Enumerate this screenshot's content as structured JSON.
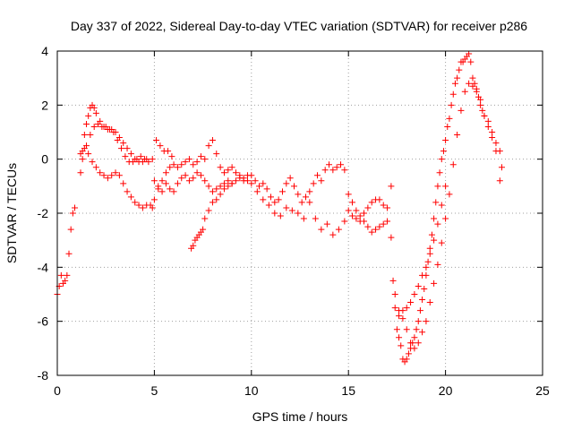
{
  "chart_data": {
    "type": "scatter",
    "title": "Day 337 of 2022, Sidereal Day-to-day VTEC variation (SDTVAR) for receiver p286",
    "xlabel": "GPS time / hours",
    "ylabel": "SDTVAR / TECUs",
    "xlim": [
      0,
      25
    ],
    "ylim": [
      -8,
      4
    ],
    "xticks": [
      0,
      5,
      10,
      15,
      20,
      25
    ],
    "yticks": [
      -8,
      -6,
      -4,
      -2,
      0,
      2,
      4
    ],
    "grid": true,
    "marker": "+",
    "color": "#ff0000",
    "series": [
      {
        "name": "SDTVAR",
        "x": [
          0.0,
          0.1,
          0.2,
          0.3,
          0.4,
          0.5,
          0.6,
          0.7,
          0.8,
          0.9,
          1.2,
          1.3,
          1.4,
          1.5,
          1.6,
          1.7,
          1.8,
          1.9,
          2.0,
          2.2,
          2.4,
          2.6,
          2.8,
          3.0,
          3.2,
          3.4,
          3.6,
          3.8,
          4.0,
          4.2,
          4.4,
          4.6,
          1.3,
          1.5,
          1.7,
          1.9,
          2.1,
          2.3,
          2.5,
          2.7,
          2.9,
          3.1,
          3.3,
          3.5,
          3.7,
          3.9,
          4.1,
          4.3,
          4.5,
          4.7,
          4.9,
          5.1,
          5.3,
          5.5,
          5.7,
          5.9,
          1.2,
          1.4,
          1.6,
          1.8,
          2.0,
          2.2,
          2.4,
          2.6,
          2.8,
          3.0,
          3.2,
          3.4,
          3.6,
          3.8,
          4.0,
          4.2,
          4.4,
          4.6,
          4.8,
          4.9,
          5.0,
          5.2,
          5.4,
          5.6,
          5.8,
          6.0,
          6.2,
          6.4,
          6.6,
          6.8,
          7.0,
          7.2,
          7.4,
          7.6,
          7.8,
          8.0,
          8.2,
          8.4,
          8.6,
          8.8,
          9.0,
          9.2,
          9.4,
          9.6,
          9.8,
          5.0,
          5.2,
          5.4,
          5.6,
          5.8,
          6.0,
          6.2,
          6.4,
          6.6,
          6.8,
          7.0,
          7.2,
          7.4,
          7.6,
          7.8,
          8.0,
          8.2,
          8.4,
          8.6,
          8.8,
          9.0,
          9.2,
          9.4,
          9.6,
          9.8,
          6.9,
          7.0,
          7.1,
          7.2,
          7.3,
          7.4,
          7.5,
          7.6,
          7.8,
          8.0,
          8.2,
          8.4,
          8.6,
          8.8,
          9.0,
          10.0,
          10.2,
          10.4,
          10.6,
          10.8,
          11.0,
          11.2,
          11.4,
          11.6,
          11.8,
          12.0,
          12.2,
          12.4,
          12.6,
          12.8,
          13.0,
          13.2,
          13.4,
          13.6,
          13.8,
          14.0,
          14.2,
          14.4,
          14.6,
          14.8,
          10.0,
          10.3,
          10.6,
          10.9,
          11.2,
          11.5,
          11.8,
          12.1,
          12.4,
          12.7,
          13.0,
          13.3,
          13.6,
          13.9,
          14.2,
          14.5,
          14.8,
          15.0,
          15.2,
          15.4,
          15.6,
          15.8,
          16.0,
          16.2,
          16.4,
          16.6,
          16.8,
          17.0,
          17.2,
          15.0,
          15.2,
          15.4,
          15.6,
          15.8,
          16.0,
          16.2,
          16.4,
          16.6,
          16.8,
          17.0,
          17.2,
          17.3,
          17.4,
          17.5,
          17.6,
          17.7,
          17.8,
          17.9,
          18.0,
          18.1,
          18.2,
          18.3,
          18.4,
          18.5,
          18.6,
          18.7,
          18.8,
          18.9,
          19.0,
          19.1,
          19.2,
          19.3,
          19.4,
          19.5,
          19.6,
          19.7,
          19.8,
          19.9,
          20.0,
          20.1,
          20.2,
          20.3,
          20.4,
          20.5,
          20.6,
          20.7,
          20.8,
          20.9,
          21.0,
          21.1,
          21.2,
          21.3,
          21.4,
          21.5,
          21.6,
          21.7,
          21.8,
          21.9,
          22.0,
          22.2,
          22.4,
          22.6,
          22.8,
          22.9,
          17.4,
          17.6,
          17.8,
          18.0,
          18.2,
          18.4,
          18.6,
          18.8,
          19.0,
          19.2,
          19.4,
          19.6,
          19.8,
          20.0,
          20.2,
          20.4,
          20.6,
          20.8,
          21.0,
          21.2,
          21.4,
          21.6,
          21.8,
          22.0,
          22.2,
          22.4,
          22.6,
          22.8,
          17.6,
          17.8,
          18.0,
          18.2,
          18.4,
          18.6,
          18.8,
          19.0,
          19.2,
          19.4,
          19.6,
          19.8,
          20.0
        ],
        "y": [
          -5.0,
          -4.7,
          -4.3,
          -4.6,
          -4.5,
          -4.3,
          -3.5,
          -2.6,
          -2.0,
          -1.8,
          -0.5,
          0.3,
          0.9,
          1.3,
          1.6,
          1.9,
          2.0,
          1.9,
          1.7,
          1.4,
          1.2,
          1.1,
          1.1,
          1.0,
          0.8,
          0.6,
          0.4,
          0.2,
          0.0,
          -0.1,
          -0.1,
          0.0,
          0.0,
          0.5,
          0.9,
          1.2,
          1.3,
          1.2,
          1.2,
          1.1,
          1.0,
          0.7,
          0.4,
          0.1,
          -0.1,
          -0.1,
          0.0,
          0.1,
          0.0,
          -0.1,
          0.0,
          0.7,
          0.5,
          0.3,
          0.3,
          0.1,
          0.2,
          0.4,
          0.2,
          -0.1,
          -0.3,
          -0.5,
          -0.6,
          -0.7,
          -0.6,
          -0.5,
          -0.6,
          -0.9,
          -1.2,
          -1.4,
          -1.6,
          -1.7,
          -1.8,
          -1.7,
          -1.7,
          -1.8,
          -1.5,
          -1.1,
          -0.8,
          -0.5,
          -0.3,
          -0.2,
          -0.3,
          -0.2,
          -0.1,
          0.0,
          -0.2,
          -0.1,
          0.1,
          0.0,
          0.5,
          0.7,
          0.2,
          -0.3,
          -0.5,
          -0.4,
          -0.3,
          -0.5,
          -0.6,
          -0.7,
          -0.8,
          -0.8,
          -1.0,
          -1.2,
          -0.9,
          -1.1,
          -1.2,
          -0.9,
          -0.7,
          -0.6,
          -0.8,
          -0.7,
          -0.5,
          -0.6,
          -0.8,
          -1.0,
          -1.2,
          -1.1,
          -1.0,
          -0.9,
          -0.8,
          -0.9,
          -0.8,
          -0.7,
          -0.8,
          -0.6,
          -3.3,
          -3.2,
          -3.0,
          -2.9,
          -2.8,
          -2.7,
          -2.6,
          -2.2,
          -1.9,
          -1.6,
          -1.5,
          -1.3,
          -1.1,
          -1.0,
          -0.9,
          -0.6,
          -0.8,
          -1.0,
          -0.9,
          -1.1,
          -1.4,
          -1.6,
          -1.5,
          -1.2,
          -0.9,
          -0.7,
          -1.0,
          -1.3,
          -1.6,
          -1.4,
          -1.2,
          -0.9,
          -0.6,
          -0.8,
          -0.4,
          -0.2,
          -0.4,
          -0.3,
          -0.2,
          -0.4,
          -0.9,
          -1.2,
          -1.5,
          -1.7,
          -2.0,
          -2.1,
          -1.8,
          -1.9,
          -2.0,
          -2.2,
          -1.6,
          -2.2,
          -2.6,
          -2.4,
          -2.8,
          -2.6,
          -2.3,
          -1.3,
          -1.6,
          -1.9,
          -2.1,
          -2.3,
          -2.5,
          -2.7,
          -2.6,
          -2.5,
          -2.4,
          -1.8,
          -1.0,
          -1.9,
          -2.1,
          -2.2,
          -2.3,
          -2.0,
          -1.8,
          -1.6,
          -1.5,
          -1.5,
          -1.7,
          -2.3,
          -2.9,
          -4.5,
          -5.5,
          -6.3,
          -6.6,
          -6.9,
          -7.4,
          -7.5,
          -7.4,
          -7.2,
          -7.0,
          -6.8,
          -6.6,
          -6.3,
          -6.0,
          -5.6,
          -5.2,
          -4.8,
          -4.3,
          -3.8,
          -3.3,
          -2.8,
          -2.2,
          -1.6,
          -1.0,
          -0.5,
          0.0,
          0.3,
          0.7,
          1.2,
          1.5,
          2.0,
          2.4,
          2.8,
          3.0,
          3.3,
          3.6,
          3.6,
          3.7,
          3.8,
          3.9,
          3.6,
          3.0,
          2.8,
          2.6,
          2.3,
          2.0,
          1.8,
          1.6,
          1.4,
          1.0,
          0.6,
          0.3,
          -0.3,
          -5.0,
          -5.6,
          -5.9,
          -6.3,
          -6.8,
          -7.0,
          -6.8,
          -6.4,
          -6.0,
          -5.3,
          -4.6,
          -3.9,
          -3.1,
          -2.2,
          -1.3,
          -0.2,
          0.9,
          1.8,
          2.5,
          2.8,
          2.7,
          2.5,
          2.2,
          1.6,
          1.2,
          0.8,
          0.3,
          -0.8,
          -5.8,
          -5.6,
          -5.5,
          -5.3,
          -5.0,
          -4.7,
          -4.3,
          -4.0,
          -3.5,
          -3.0,
          -2.4,
          -1.7,
          -1.0
        ]
      }
    ]
  }
}
